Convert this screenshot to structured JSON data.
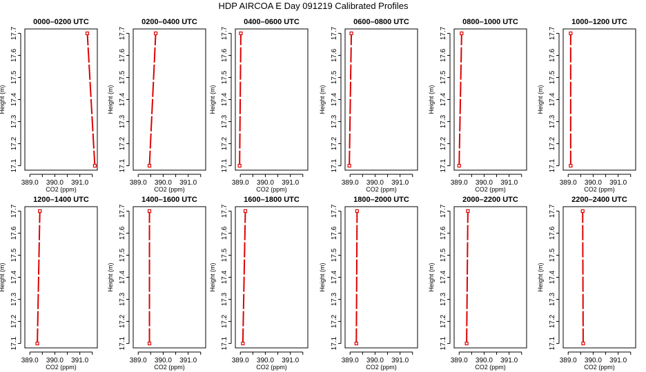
{
  "title": "HDP AIRCOA E  Day 091219  Calibrated Profiles",
  "xlabel": "CO2 (ppm)",
  "ylabel": "Height (m)",
  "series_color": "#dd0000",
  "chart_data": [
    {
      "type": "line",
      "title": "0000–0200 UTC",
      "xlabel": "CO2 (ppm)",
      "ylabel": "Height (m)",
      "xlim": [
        388.8,
        391.7
      ],
      "ylim": [
        17.08,
        17.72
      ],
      "xticks": [
        "389.0",
        "390.0",
        "391.0"
      ],
      "yticks": [
        "17.1",
        "17.2",
        "17.3",
        "17.4",
        "17.5",
        "17.6",
        "17.7"
      ],
      "x": [
        391.6,
        391.3
      ],
      "y": [
        17.1,
        17.7
      ]
    },
    {
      "type": "line",
      "title": "0200–0400 UTC",
      "xlabel": "CO2 (ppm)",
      "ylabel": "Height (m)",
      "xlim": [
        388.8,
        391.7
      ],
      "ylim": [
        17.08,
        17.72
      ],
      "xticks": [
        "389.0",
        "390.0",
        "391.0"
      ],
      "yticks": [
        "17.1",
        "17.2",
        "17.3",
        "17.4",
        "17.5",
        "17.6",
        "17.7"
      ],
      "x": [
        389.45,
        389.7
      ],
      "y": [
        17.1,
        17.7
      ]
    },
    {
      "type": "line",
      "title": "0400–0600 UTC",
      "xlabel": "CO2 (ppm)",
      "ylabel": "Height (m)",
      "xlim": [
        388.8,
        391.7
      ],
      "ylim": [
        17.08,
        17.72
      ],
      "xticks": [
        "389.0",
        "390.0",
        "391.0"
      ],
      "yticks": [
        "17.1",
        "17.2",
        "17.3",
        "17.4",
        "17.5",
        "17.6",
        "17.7"
      ],
      "x": [
        388.97,
        389.02
      ],
      "y": [
        17.1,
        17.7
      ]
    },
    {
      "type": "line",
      "title": "0600–0800 UTC",
      "xlabel": "CO2 (ppm)",
      "ylabel": "Height (m)",
      "xlim": [
        388.8,
        391.7
      ],
      "ylim": [
        17.08,
        17.72
      ],
      "xticks": [
        "389.0",
        "390.0",
        "391.0"
      ],
      "yticks": [
        "17.1",
        "17.2",
        "17.3",
        "17.4",
        "17.5",
        "17.6",
        "17.7"
      ],
      "x": [
        388.97,
        389.05
      ],
      "y": [
        17.1,
        17.7
      ]
    },
    {
      "type": "line",
      "title": "0800–1000 UTC",
      "xlabel": "CO2 (ppm)",
      "ylabel": "Height (m)",
      "xlim": [
        388.8,
        391.7
      ],
      "ylim": [
        17.08,
        17.72
      ],
      "xticks": [
        "389.0",
        "390.0",
        "391.0"
      ],
      "yticks": [
        "17.1",
        "17.2",
        "17.3",
        "17.4",
        "17.5",
        "17.6",
        "17.7"
      ],
      "x": [
        389.0,
        389.1
      ],
      "y": [
        17.1,
        17.7
      ]
    },
    {
      "type": "line",
      "title": "1000–1200 UTC",
      "xlabel": "CO2 (ppm)",
      "ylabel": "Height (m)",
      "xlim": [
        388.8,
        391.7
      ],
      "ylim": [
        17.08,
        17.72
      ],
      "xticks": [
        "389.0",
        "390.0",
        "391.0"
      ],
      "yticks": [
        "17.1",
        "17.2",
        "17.3",
        "17.4",
        "17.5",
        "17.6",
        "17.7"
      ],
      "x": [
        389.1,
        389.1
      ],
      "y": [
        17.1,
        17.7
      ]
    },
    {
      "type": "line",
      "title": "1200–1400 UTC",
      "xlabel": "CO2 (ppm)",
      "ylabel": "Height (m)",
      "xlim": [
        388.8,
        391.7
      ],
      "ylim": [
        17.08,
        17.72
      ],
      "xticks": [
        "389.0",
        "390.0",
        "391.0"
      ],
      "yticks": [
        "17.1",
        "17.2",
        "17.3",
        "17.4",
        "17.5",
        "17.6",
        "17.7"
      ],
      "x": [
        389.3,
        389.4
      ],
      "y": [
        17.1,
        17.7
      ]
    },
    {
      "type": "line",
      "title": "1400–1600 UTC",
      "xlabel": "CO2 (ppm)",
      "ylabel": "Height (m)",
      "xlim": [
        388.8,
        391.7
      ],
      "ylim": [
        17.08,
        17.72
      ],
      "xticks": [
        "389.0",
        "390.0",
        "391.0"
      ],
      "yticks": [
        "17.1",
        "17.2",
        "17.3",
        "17.4",
        "17.5",
        "17.6",
        "17.7"
      ],
      "x": [
        389.45,
        389.45
      ],
      "y": [
        17.1,
        17.7
      ]
    },
    {
      "type": "line",
      "title": "1600–1800 UTC",
      "xlabel": "CO2 (ppm)",
      "ylabel": "Height (m)",
      "xlim": [
        388.8,
        391.7
      ],
      "ylim": [
        17.08,
        17.72
      ],
      "xticks": [
        "389.0",
        "390.0",
        "391.0"
      ],
      "yticks": [
        "17.1",
        "17.2",
        "17.3",
        "17.4",
        "17.5",
        "17.6",
        "17.7"
      ],
      "x": [
        389.1,
        389.2
      ],
      "y": [
        17.1,
        17.7
      ]
    },
    {
      "type": "line",
      "title": "1800–2000 UTC",
      "xlabel": "CO2 (ppm)",
      "ylabel": "Height (m)",
      "xlim": [
        388.8,
        391.7
      ],
      "ylim": [
        17.08,
        17.72
      ],
      "xticks": [
        "389.0",
        "390.0",
        "391.0"
      ],
      "yticks": [
        "17.1",
        "17.2",
        "17.3",
        "17.4",
        "17.5",
        "17.6",
        "17.7"
      ],
      "x": [
        389.25,
        389.28
      ],
      "y": [
        17.1,
        17.7
      ]
    },
    {
      "type": "line",
      "title": "2000–2200 UTC",
      "xlabel": "CO2 (ppm)",
      "ylabel": "Height (m)",
      "xlim": [
        388.8,
        391.7
      ],
      "ylim": [
        17.08,
        17.72
      ],
      "xticks": [
        "389.0",
        "390.0",
        "391.0"
      ],
      "yticks": [
        "17.1",
        "17.2",
        "17.3",
        "17.4",
        "17.5",
        "17.6",
        "17.7"
      ],
      "x": [
        389.3,
        389.35
      ],
      "y": [
        17.1,
        17.7
      ]
    },
    {
      "type": "line",
      "title": "2200–2400 UTC",
      "xlabel": "CO2 (ppm)",
      "ylabel": "Height (m)",
      "xlim": [
        388.8,
        391.7
      ],
      "ylim": [
        17.08,
        17.72
      ],
      "xticks": [
        "389.0",
        "390.0",
        "391.0"
      ],
      "yticks": [
        "17.1",
        "17.2",
        "17.3",
        "17.4",
        "17.5",
        "17.6",
        "17.7"
      ],
      "x": [
        389.6,
        389.58
      ],
      "y": [
        17.1,
        17.7
      ]
    }
  ]
}
